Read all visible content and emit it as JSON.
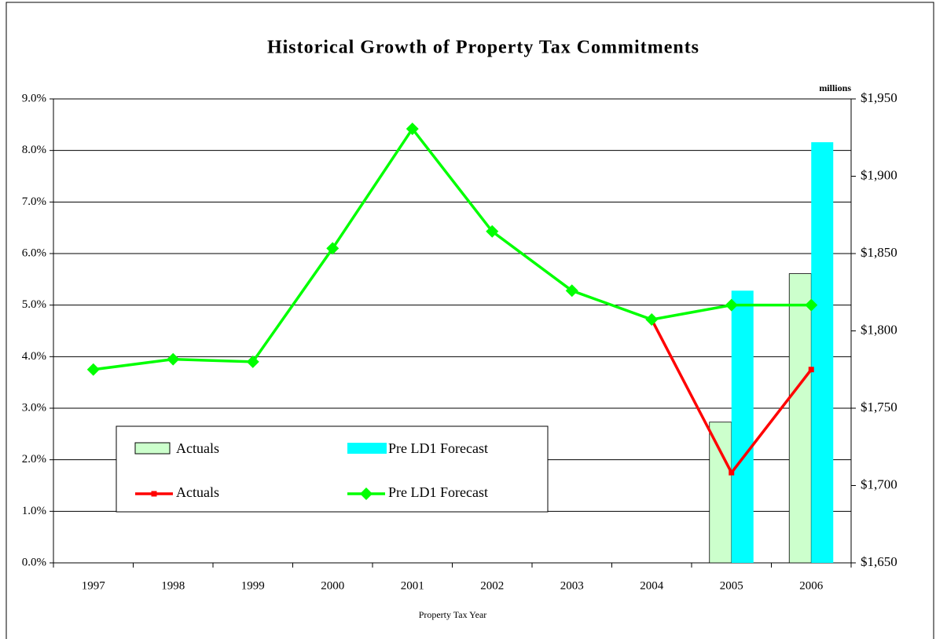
{
  "chart_data": {
    "type": "combo",
    "title": "Historical Growth of Property Tax Commitments",
    "x_label": "Property Tax Year",
    "y2_unit_label": "millions",
    "categories": [
      "1997",
      "1998",
      "1999",
      "2000",
      "2001",
      "2002",
      "2003",
      "2004",
      "2005",
      "2006"
    ],
    "ylim": [
      0,
      9
    ],
    "yticks": [
      {
        "value": 0,
        "label": "0.0%"
      },
      {
        "value": 1,
        "label": "1.0%"
      },
      {
        "value": 2,
        "label": "2.0%"
      },
      {
        "value": 3,
        "label": "3.0%"
      },
      {
        "value": 4,
        "label": "4.0%"
      },
      {
        "value": 5,
        "label": "5.0%"
      },
      {
        "value": 6,
        "label": "6.0%"
      },
      {
        "value": 7,
        "label": "7.0%"
      },
      {
        "value": 8,
        "label": "8.0%"
      },
      {
        "value": 9,
        "label": "9.0%"
      }
    ],
    "y2lim": [
      1650,
      1950
    ],
    "y2ticks": [
      {
        "value": 1650,
        "label": "$1,650"
      },
      {
        "value": 1700,
        "label": "$1,700"
      },
      {
        "value": 1750,
        "label": "$1,750"
      },
      {
        "value": 1800,
        "label": "$1,800"
      },
      {
        "value": 1850,
        "label": "$1,850"
      },
      {
        "value": 1900,
        "label": "$1,900"
      },
      {
        "value": 1950,
        "label": "$1,950"
      }
    ],
    "grid": true,
    "series": [
      {
        "name": "Actuals",
        "type": "bar",
        "axis": "y2",
        "color": "#ccffcc",
        "values": [
          null,
          null,
          null,
          null,
          null,
          null,
          null,
          null,
          1741,
          1837
        ]
      },
      {
        "name": "Pre LD1 Forecast",
        "type": "bar",
        "axis": "y2",
        "color": "#00ffff",
        "values": [
          null,
          null,
          null,
          null,
          null,
          null,
          null,
          null,
          1826,
          1922
        ]
      },
      {
        "name": "Actuals",
        "type": "line",
        "marker": "square",
        "color": "#ff0000",
        "values": [
          null,
          null,
          null,
          null,
          null,
          null,
          null,
          4.72,
          1.75,
          3.75
        ]
      },
      {
        "name": "Pre LD1 Forecast",
        "type": "line",
        "marker": "diamond",
        "color": "#00ff00",
        "values": [
          3.75,
          3.95,
          3.9,
          6.1,
          8.42,
          6.43,
          5.28,
          4.72,
          5.0,
          5.0
        ]
      }
    ]
  }
}
